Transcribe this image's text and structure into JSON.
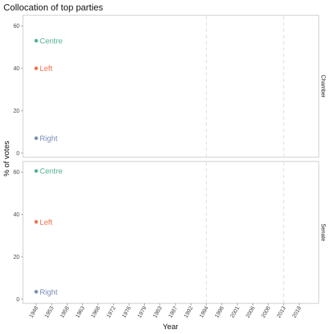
{
  "chart_data": {
    "type": "scatter",
    "title": "Collocation of top parties",
    "xlabel": "Year",
    "ylabel": "% of votes",
    "x_ticks": [
      "1948",
      "1953",
      "1958",
      "1963",
      "1968",
      "1972",
      "1976",
      "1979",
      "1983",
      "1987",
      "1992",
      "1994",
      "1996",
      "2001",
      "2006",
      "2008",
      "2013",
      "2018"
    ],
    "current_year": "1948",
    "dashed_years": [
      "1994",
      "2013"
    ],
    "ylim": [
      -2,
      65
    ],
    "y_ticks": [
      0,
      20,
      40,
      60
    ],
    "grid": false,
    "facets": [
      {
        "name": "Chamber",
        "points": [
          {
            "label": "Centre",
            "x": "1948",
            "y": 53,
            "color": "#52b192"
          },
          {
            "label": "Left",
            "x": "1948",
            "y": 40,
            "color": "#ee7351"
          },
          {
            "label": "Right",
            "x": "1948",
            "y": 7,
            "color": "#7a8db7"
          }
        ]
      },
      {
        "name": "Senate",
        "points": [
          {
            "label": "Centre",
            "x": "1948",
            "y": 60.5,
            "color": "#52b192"
          },
          {
            "label": "Left",
            "x": "1948",
            "y": 36.5,
            "color": "#ee7351"
          },
          {
            "label": "Right",
            "x": "1948",
            "y": 3.5,
            "color": "#7a8db7"
          }
        ]
      }
    ]
  }
}
